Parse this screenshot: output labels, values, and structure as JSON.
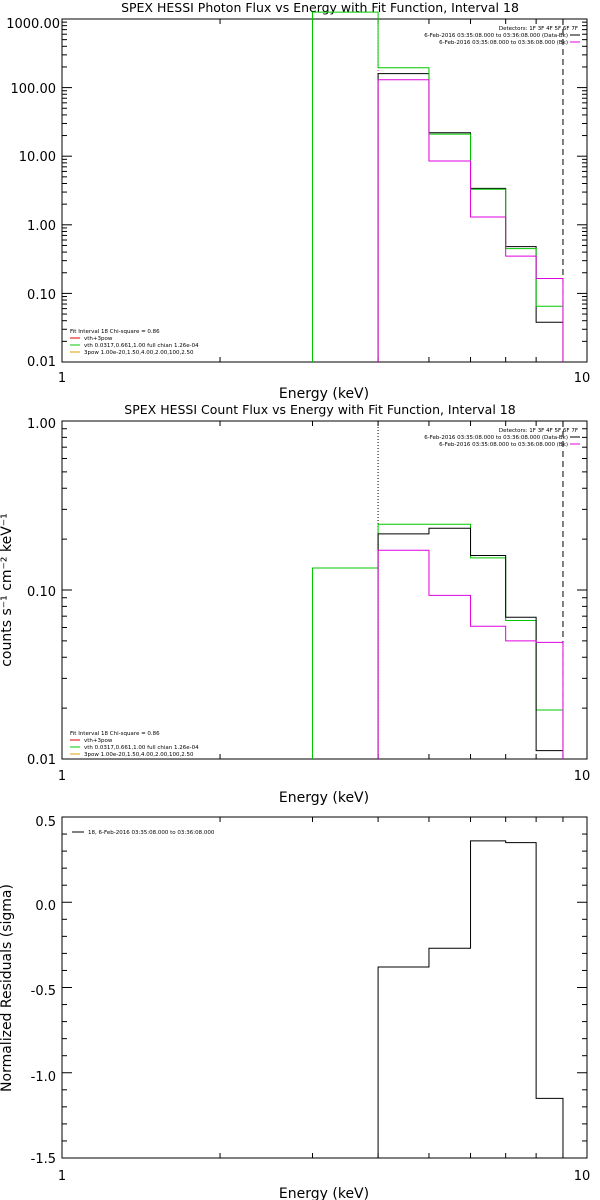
{
  "colors": {
    "black": "#000000",
    "magenta": "#e000e0",
    "green": "#00c800",
    "red": "#e00000",
    "orange": "#e0a000"
  },
  "chart_data": [
    {
      "type": "line",
      "title": "SPEX HESSI Photon Flux vs Energy with Fit Function, Interval 18",
      "xlabel": "Energy (keV)",
      "ylabel": "",
      "x_scale": "log",
      "y_scale": "log",
      "xlim": [
        1,
        10
      ],
      "ylim": [
        0.01,
        1000
      ],
      "x_ticks": [
        "1",
        "10"
      ],
      "y_ticks": [
        {
          "v": 0.01,
          "label": "0.01"
        },
        {
          "v": 0.1,
          "label": "0.10"
        },
        {
          "v": 1,
          "label": "1.00"
        },
        {
          "v": 10,
          "label": "10.00"
        },
        {
          "v": 100,
          "label": "100.00"
        },
        {
          "v": 1000,
          "label": "1000.00"
        }
      ],
      "edges": [
        3.0,
        4.0,
        5.0,
        6.0,
        7.0,
        8.0,
        9.0
      ],
      "vlines": [
        {
          "x": 4.0,
          "style": "dotted",
          "color": "magenta"
        },
        {
          "x": 9.0,
          "style": "dashed",
          "color": "black"
        }
      ],
      "series": [
        {
          "color": "black",
          "edges": [
            4.0,
            5.0,
            6.0,
            7.0,
            8.0,
            9.0
          ],
          "values": [
            160,
            22,
            3.4,
            0.48,
            0.038
          ]
        },
        {
          "color": "green",
          "edges": [
            3.0,
            4.0,
            5.0,
            6.0,
            7.0,
            8.0,
            9.0
          ],
          "values": [
            2000,
            195,
            21,
            3.3,
            0.45,
            0.065
          ]
        },
        {
          "color": "magenta",
          "edges": [
            4.0,
            5.0,
            6.0,
            7.0,
            8.0,
            9.0
          ],
          "values": [
            130,
            8.5,
            1.3,
            0.35,
            0.165
          ]
        }
      ],
      "legend_top": [
        "Detectors: 1F 3F 4F 5F 6F 7F",
        "6-Feb-2016 03:35:08.000 to 03:36:08.000 (Data-Bk)",
        "6-Feb-2016 03:35:08.000 to 03:36:08.000 (Bk)"
      ],
      "legend_bottom": [
        "Fit Interval 18   Chi-square = 0.86",
        "vth+3pow",
        "vth 0.0317,0.661,1.00  full chian 1.26e-04",
        "3pow 1.00e-20,1.50,4.00,2.00,100,2.50"
      ]
    },
    {
      "type": "line",
      "title": "SPEX HESSI Count Flux vs Energy with Fit Function, Interval 18",
      "xlabel": "Energy (keV)",
      "ylabel": "counts s⁻¹ cm⁻² keV⁻¹",
      "x_scale": "log",
      "y_scale": "log",
      "xlim": [
        1,
        10
      ],
      "ylim": [
        0.01,
        1.0
      ],
      "x_ticks": [
        "1",
        "10"
      ],
      "y_ticks": [
        {
          "v": 0.01,
          "label": "0.01"
        },
        {
          "v": 0.1,
          "label": "0.10"
        },
        {
          "v": 1.0,
          "label": "1.00"
        }
      ],
      "vlines": [
        {
          "x": 4.0,
          "style": "dotted",
          "color": "black"
        },
        {
          "x": 9.0,
          "style": "dashed",
          "color": "black"
        }
      ],
      "series": [
        {
          "color": "green",
          "edges": [
            3.0,
            4.0,
            5.0,
            6.0,
            7.0,
            8.0,
            9.0
          ],
          "values": [
            0.135,
            0.245,
            0.245,
            0.155,
            0.066,
            0.0195
          ]
        },
        {
          "color": "black",
          "edges": [
            4.0,
            5.0,
            6.0,
            7.0,
            8.0,
            9.0
          ],
          "values": [
            0.215,
            0.232,
            0.16,
            0.069,
            0.0112
          ]
        },
        {
          "color": "magenta",
          "edges": [
            4.0,
            5.0,
            6.0,
            7.0,
            8.0,
            9.0
          ],
          "values": [
            0.172,
            0.093,
            0.061,
            0.05,
            0.049
          ]
        }
      ],
      "legend_top": [
        "Detectors: 1F 3F 4F 5F 6F 7F",
        "6-Feb-2016 03:35:08.000 to 03:36:08.000 (Data-Bk)",
        "6-Feb-2016 03:35:08.000 to 03:36:08.000 (Bk)"
      ],
      "legend_bottom": [
        "Fit Interval 18   Chi-square = 0.86",
        "vth+3pow",
        "vth 0.0317,0.661,1.00  full chian 1.26e-04",
        "3pow 1.00e-20,1.50,4.00,2.00,100,2.50"
      ]
    },
    {
      "type": "line",
      "title": "",
      "xlabel": "Energy (keV)",
      "ylabel": "Normalized Residuals (sigma)",
      "x_scale": "log",
      "y_scale": "linear",
      "xlim": [
        1,
        10
      ],
      "ylim": [
        -1.5,
        0.5
      ],
      "x_ticks": [
        "1",
        "10"
      ],
      "y_ticks": [
        {
          "v": 0.5,
          "label": "0.5"
        },
        {
          "v": 0.0,
          "label": "0.0"
        },
        {
          "v": -0.5,
          "label": "-0.5"
        },
        {
          "v": -1.0,
          "label": "-1.0"
        },
        {
          "v": -1.5,
          "label": "-1.5"
        }
      ],
      "series": [
        {
          "color": "black",
          "edges": [
            4.0,
            5.0,
            6.0,
            7.0,
            8.0,
            9.0
          ],
          "values": [
            -0.38,
            -0.27,
            0.36,
            0.35,
            -1.15
          ]
        }
      ],
      "legend": "18, 6-Feb-2016 03:35:08.000 to 03:36:08.000"
    }
  ]
}
